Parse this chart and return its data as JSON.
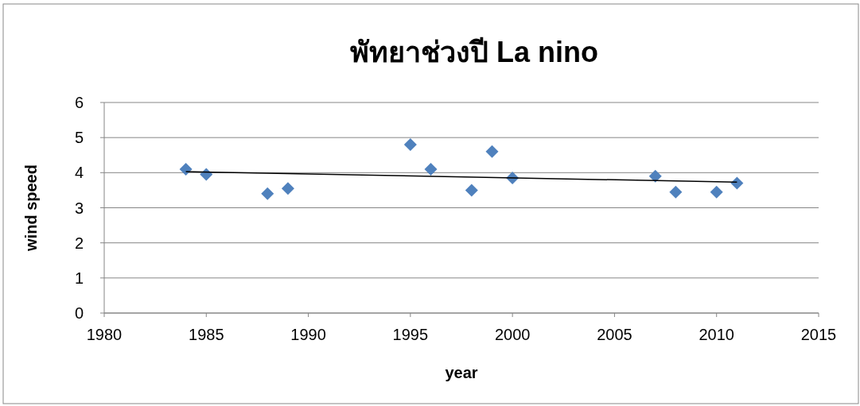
{
  "chart_data": {
    "type": "scatter",
    "title": "พัทยาช่วงปี La nino",
    "xlabel": "year",
    "ylabel": "wind speed",
    "xlim": [
      1980,
      2015
    ],
    "xticks": [
      1980,
      1985,
      1990,
      1995,
      2000,
      2005,
      2010,
      2015
    ],
    "ylim": [
      0,
      6
    ],
    "yticks": [
      0,
      1,
      2,
      3,
      4,
      5,
      6
    ],
    "grid": "y",
    "series": [
      {
        "color": "#4f81bd",
        "marker": "diamond",
        "x": [
          1984,
          1985,
          1988,
          1989,
          1995,
          1996,
          1998,
          1999,
          2000,
          2007,
          2008,
          2010,
          2011
        ],
        "values": [
          4.1,
          3.95,
          3.4,
          3.55,
          4.8,
          4.1,
          3.5,
          4.6,
          3.85,
          3.9,
          3.45,
          3.45,
          3.7
        ]
      },
      {
        "type": "line",
        "color": "#000000",
        "marker": "none",
        "line_style": "solid",
        "x": [
          1984,
          2011
        ],
        "values": [
          4.03,
          3.73
        ]
      }
    ]
  }
}
